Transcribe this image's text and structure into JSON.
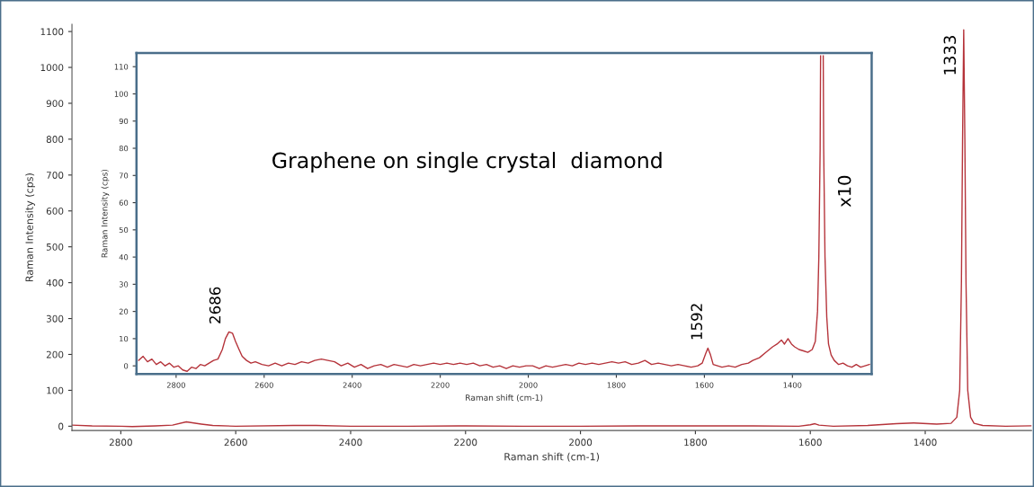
{
  "chart_data": [
    {
      "type": "line",
      "xlabel": "Raman shift (cm-1)",
      "ylabel": "Raman Intensity (cps)",
      "xlim": [
        2885,
        1215
      ],
      "ylim": [
        -12,
        1120
      ],
      "xticks": [
        2800,
        2600,
        2400,
        2200,
        2000,
        1800,
        1600,
        1400
      ],
      "yticks": [
        0,
        100,
        200,
        300,
        400,
        500,
        600,
        700,
        800,
        900,
        1000,
        1100
      ],
      "series": [
        {
          "color": "#b5333a",
          "x": [
            2885,
            2850,
            2800,
            2780,
            2740,
            2710,
            2686,
            2660,
            2640,
            2600,
            2500,
            2460,
            2400,
            2300,
            2200,
            2100,
            2000,
            1900,
            1800,
            1700,
            1620,
            1600,
            1592,
            1585,
            1560,
            1500,
            1450,
            1420,
            1380,
            1355,
            1345,
            1340,
            1337,
            1335,
            1333,
            1331,
            1329,
            1326,
            1321,
            1315,
            1300,
            1260,
            1215
          ],
          "values": [
            3,
            1,
            0,
            -1,
            1,
            3,
            12,
            6,
            2,
            0,
            2,
            2,
            0,
            0,
            1,
            0,
            0,
            1,
            1,
            1,
            0,
            4,
            7,
            3,
            0,
            2,
            7,
            9,
            6,
            8,
            25,
            100,
            400,
            800,
            1105,
            800,
            400,
            100,
            25,
            8,
            2,
            0,
            1
          ]
        }
      ],
      "annotations": [
        {
          "text": "1333",
          "x": 1333,
          "y": 1105
        }
      ]
    },
    {
      "type": "line",
      "xlabel": "Raman shift (cm-1)",
      "ylabel": "Raman Intensity (cps)",
      "xlim": [
        2890,
        1220
      ],
      "ylim": [
        -3,
        115
      ],
      "xticks": [
        2800,
        2600,
        2400,
        2200,
        2000,
        1800,
        1600,
        1400
      ],
      "yticks": [
        0,
        10,
        20,
        30,
        40,
        50,
        60,
        70,
        80,
        90,
        100,
        110
      ],
      "series": [
        {
          "color": "#b5333a",
          "x": [
            2885,
            2875,
            2865,
            2855,
            2845,
            2835,
            2825,
            2815,
            2805,
            2795,
            2785,
            2775,
            2765,
            2755,
            2745,
            2735,
            2725,
            2715,
            2705,
            2695,
            2688,
            2680,
            2672,
            2665,
            2657,
            2650,
            2640,
            2630,
            2620,
            2605,
            2590,
            2575,
            2560,
            2545,
            2530,
            2515,
            2500,
            2485,
            2470,
            2455,
            2440,
            2425,
            2410,
            2395,
            2380,
            2365,
            2350,
            2335,
            2320,
            2305,
            2290,
            2275,
            2260,
            2245,
            2230,
            2215,
            2200,
            2185,
            2170,
            2155,
            2140,
            2125,
            2110,
            2095,
            2080,
            2065,
            2050,
            2035,
            2020,
            2005,
            1990,
            1975,
            1960,
            1945,
            1930,
            1915,
            1900,
            1885,
            1870,
            1855,
            1840,
            1825,
            1810,
            1795,
            1780,
            1765,
            1750,
            1735,
            1720,
            1705,
            1690,
            1675,
            1660,
            1645,
            1630,
            1615,
            1605,
            1597,
            1592,
            1586,
            1580,
            1570,
            1560,
            1545,
            1530,
            1515,
            1500,
            1490,
            1475,
            1460,
            1445,
            1435,
            1425,
            1418,
            1410,
            1402,
            1395,
            1385,
            1375,
            1365,
            1355,
            1348,
            1343,
            1340,
            1337,
            1336,
            1333,
            1330,
            1329,
            1326,
            1322,
            1318,
            1312,
            1305,
            1295,
            1285,
            1275,
            1265,
            1255,
            1245,
            1235,
            1225
          ],
          "values": [
            2,
            3.5,
            1.5,
            2.5,
            0.5,
            1.5,
            0,
            1,
            -0.5,
            0,
            -1.5,
            -2,
            -0.5,
            -1,
            0.5,
            0,
            1,
            2,
            2.5,
            6,
            10,
            12.5,
            12,
            9,
            6,
            3.5,
            2,
            1,
            1.5,
            0.5,
            0,
            1,
            0,
            1,
            0.5,
            1.5,
            1,
            2,
            2.5,
            2,
            1.5,
            0,
            1,
            -0.5,
            0.5,
            -1,
            0,
            0.5,
            -0.5,
            0.5,
            0,
            -0.5,
            0.5,
            0,
            0.5,
            1,
            0.5,
            1,
            0.5,
            1,
            0.5,
            1,
            0,
            0.5,
            -0.5,
            0,
            -1,
            0,
            -0.5,
            0,
            0,
            -1,
            0,
            -0.5,
            0,
            0.5,
            0,
            1,
            0.5,
            1,
            0.5,
            1,
            1.5,
            1,
            1.5,
            0.5,
            1,
            2,
            0.5,
            1,
            0.5,
            0,
            0.5,
            0,
            -0.5,
            0,
            1,
            4.5,
            6.5,
            4,
            0.5,
            0,
            -0.5,
            0,
            -0.5,
            0.5,
            1,
            2,
            3,
            5,
            7,
            8,
            9.5,
            8,
            10,
            8,
            7,
            6,
            5.5,
            5,
            6,
            9,
            20,
            40,
            80,
            114,
            null,
            114,
            80,
            40,
            18,
            8,
            4,
            2,
            0.5,
            1,
            0,
            -0.5,
            0.5,
            -0.5,
            0,
            0.5
          ]
        }
      ],
      "annotations": [
        "Graphene on single crystal  diamond",
        "x10",
        {
          "text": "2686",
          "x": 2686,
          "y": 12.5
        },
        {
          "text": "1592",
          "x": 1592,
          "y": 6.5
        }
      ]
    }
  ]
}
